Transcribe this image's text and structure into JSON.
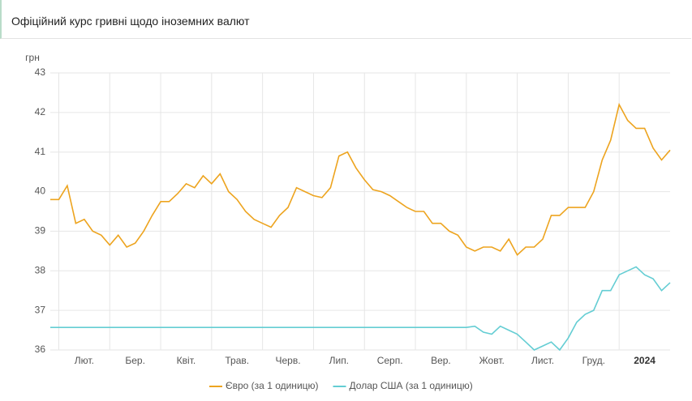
{
  "chart_data": {
    "type": "line",
    "title": "Офіційний курс гривні щодо іноземних валют",
    "y_label": "грн",
    "categories": [
      null,
      null,
      null,
      null,
      "Лют.",
      null,
      null,
      null,
      null,
      null,
      "Бер.",
      null,
      null,
      null,
      null,
      null,
      "Квіт.",
      null,
      null,
      null,
      null,
      null,
      "Трав.",
      null,
      null,
      null,
      null,
      null,
      "Черв.",
      null,
      null,
      null,
      null,
      null,
      "Лип.",
      null,
      null,
      null,
      null,
      null,
      "Серп.",
      null,
      null,
      null,
      null,
      null,
      "Вер.",
      null,
      null,
      null,
      null,
      null,
      "Жовт.",
      null,
      null,
      null,
      null,
      null,
      "Лист.",
      null,
      null,
      null,
      null,
      null,
      "Груд.",
      null,
      null,
      null,
      null,
      null,
      "2024",
      null,
      null,
      null
    ],
    "series": [
      {
        "name": "Євро (за 1 одиницю)",
        "color": "#eda41f",
        "values": [
          39.8,
          39.8,
          40.15,
          39.2,
          39.3,
          39.0,
          38.9,
          38.65,
          38.9,
          38.6,
          38.7,
          39.0,
          39.4,
          39.75,
          39.75,
          39.95,
          40.2,
          40.1,
          40.4,
          40.2,
          40.45,
          40.0,
          39.8,
          39.5,
          39.3,
          39.2,
          39.1,
          39.4,
          39.6,
          40.1,
          40.0,
          39.9,
          39.85,
          40.1,
          40.9,
          41.0,
          40.6,
          40.3,
          40.05,
          40.0,
          39.9,
          39.75,
          39.6,
          39.5,
          39.5,
          39.2,
          39.2,
          39.0,
          38.9,
          38.6,
          38.5,
          38.6,
          38.6,
          38.5,
          38.8,
          38.4,
          38.6,
          38.6,
          38.8,
          39.4,
          39.4,
          39.6,
          39.6,
          39.6,
          40.0,
          40.8,
          41.3,
          42.2,
          41.8,
          41.6,
          41.6,
          41.1,
          40.8,
          41.05
        ]
      },
      {
        "name": "Долар США (за 1 одиницю)",
        "color": "#64cdd3",
        "values": [
          36.57,
          36.57,
          36.57,
          36.57,
          36.57,
          36.57,
          36.57,
          36.57,
          36.57,
          36.57,
          36.57,
          36.57,
          36.57,
          36.57,
          36.57,
          36.57,
          36.57,
          36.57,
          36.57,
          36.57,
          36.57,
          36.57,
          36.57,
          36.57,
          36.57,
          36.57,
          36.57,
          36.57,
          36.57,
          36.57,
          36.57,
          36.57,
          36.57,
          36.57,
          36.57,
          36.57,
          36.57,
          36.57,
          36.57,
          36.57,
          36.57,
          36.57,
          36.57,
          36.57,
          36.57,
          36.57,
          36.57,
          36.57,
          36.57,
          36.57,
          36.6,
          36.45,
          36.4,
          36.6,
          36.5,
          36.4,
          36.2,
          36.0,
          36.1,
          36.2,
          36.0,
          36.3,
          36.7,
          36.9,
          37.0,
          37.5,
          37.5,
          37.9,
          38.0,
          38.1,
          37.9,
          37.8,
          37.5,
          37.7
        ]
      }
    ],
    "ylim": [
      36,
      43
    ],
    "yticks": [
      36,
      37,
      38,
      39,
      40,
      41,
      42,
      43
    ],
    "grid": true,
    "legend": "bottom"
  }
}
